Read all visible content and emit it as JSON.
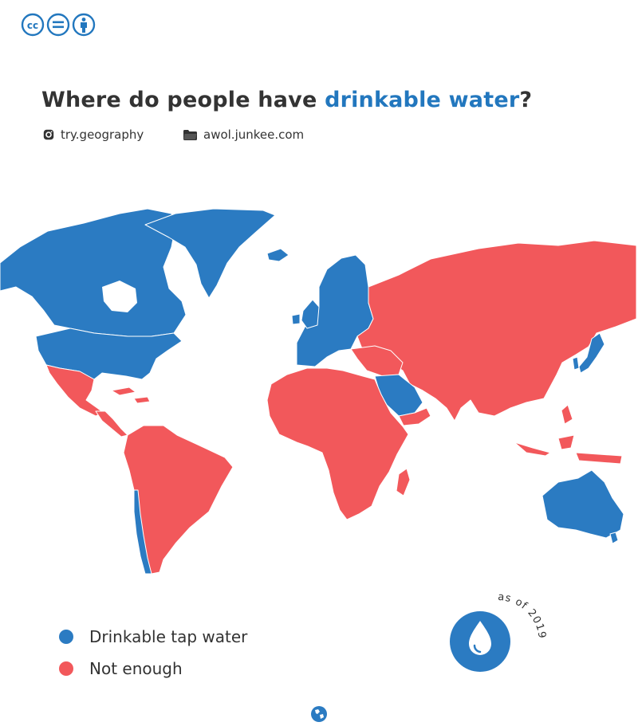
{
  "title": {
    "prefix": "Where do people have ",
    "highlight": "drinkable water",
    "suffix": "?"
  },
  "credits": [
    {
      "icon": "instagram-icon",
      "text": "try.geography"
    },
    {
      "icon": "folder-icon",
      "text": "awol.junkee.com"
    }
  ],
  "license_icons": [
    "creative-commons-icon",
    "no-derivatives-icon",
    "attribution-icon"
  ],
  "legend": [
    {
      "label": "Drinkable tap water",
      "color": "#2b7bc2"
    },
    {
      "label": "Not enough",
      "color": "#f2585b"
    }
  ],
  "badge": {
    "text": "as of 2019",
    "icon": "water-drop-icon"
  },
  "colors": {
    "drinkable": "#2b7bc2",
    "not_enough": "#f2585b",
    "highlight": "#2277be",
    "text": "#333333"
  },
  "map": {
    "regions": [
      {
        "name": "North America",
        "category": "drinkable"
      },
      {
        "name": "Greenland",
        "category": "drinkable"
      },
      {
        "name": "Europe",
        "category": "drinkable"
      },
      {
        "name": "Saudi Arabia",
        "category": "drinkable"
      },
      {
        "name": "Japan",
        "category": "drinkable"
      },
      {
        "name": "South Korea",
        "category": "drinkable"
      },
      {
        "name": "Australia",
        "category": "drinkable"
      },
      {
        "name": "New Zealand",
        "category": "drinkable"
      },
      {
        "name": "Chile",
        "category": "drinkable"
      },
      {
        "name": "Mexico",
        "category": "not_enough"
      },
      {
        "name": "Central America",
        "category": "not_enough"
      },
      {
        "name": "South America",
        "category": "not_enough"
      },
      {
        "name": "Africa",
        "category": "not_enough"
      },
      {
        "name": "Madagascar",
        "category": "not_enough"
      },
      {
        "name": "Russia",
        "category": "not_enough"
      },
      {
        "name": "Asia",
        "category": "not_enough"
      },
      {
        "name": "Indonesia",
        "category": "not_enough"
      }
    ]
  },
  "footer_icon": "globe-icon"
}
